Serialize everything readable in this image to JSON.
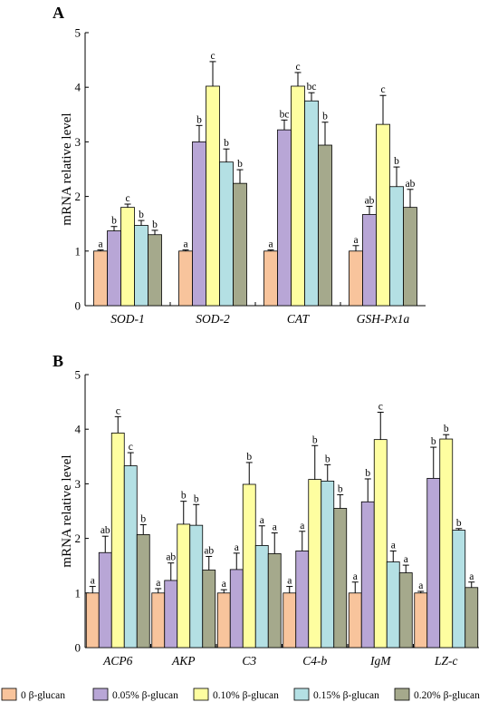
{
  "legend": [
    {
      "label": "0 β-glucan",
      "color": "#F8C49C"
    },
    {
      "label": "0.05% β-glucan",
      "color": "#B8A6D6"
    },
    {
      "label": "0.10% β-glucan",
      "color": "#FEFEA0"
    },
    {
      "label": "0.15% β-glucan",
      "color": "#B4E0E4"
    },
    {
      "label": "0.20% β-glucan",
      "color": "#A5A98C"
    }
  ],
  "chart_data": [
    {
      "panel": "A",
      "type": "bar",
      "ylabel": "mRNA relative level",
      "ylim": [
        0,
        5
      ],
      "yticks": [
        "0",
        "1",
        "2",
        "3",
        "4",
        "5"
      ],
      "categories": [
        "SOD-1",
        "SOD-2",
        "CAT",
        "GSH-Px1a"
      ],
      "series": [
        {
          "name": "0 β-glucan",
          "values": [
            1.0,
            1.0,
            1.0,
            1.0
          ],
          "errors": [
            0.02,
            0.02,
            0.02,
            0.1
          ],
          "letters": [
            "a",
            "a",
            "a",
            "a"
          ]
        },
        {
          "name": "0.05% β-glucan",
          "values": [
            1.37,
            3.0,
            3.22,
            1.67
          ],
          "errors": [
            0.08,
            0.3,
            0.18,
            0.15
          ],
          "letters": [
            "b",
            "b",
            "bc",
            "ab"
          ]
        },
        {
          "name": "0.10% β-glucan",
          "values": [
            1.8,
            4.02,
            4.02,
            3.32
          ],
          "errors": [
            0.06,
            0.45,
            0.25,
            0.53
          ],
          "letters": [
            "c",
            "c",
            "c",
            "c"
          ]
        },
        {
          "name": "0.15% β-glucan",
          "values": [
            1.47,
            2.63,
            3.75,
            2.18
          ],
          "errors": [
            0.09,
            0.24,
            0.15,
            0.36
          ],
          "letters": [
            "b",
            "b",
            "bc",
            "b"
          ]
        },
        {
          "name": "0.20% β-glucan",
          "values": [
            1.3,
            2.24,
            2.94,
            1.8
          ],
          "errors": [
            0.08,
            0.25,
            0.42,
            0.33
          ],
          "letters": [
            "b",
            "b",
            "b",
            "ab"
          ]
        }
      ]
    },
    {
      "panel": "B",
      "type": "bar",
      "ylabel": "mRNA relative level",
      "ylim": [
        0,
        5
      ],
      "yticks": [
        "0",
        "1",
        "2",
        "3",
        "4",
        "5"
      ],
      "categories": [
        "ACP6",
        "AKP",
        "C3",
        "C4-b",
        "IgM",
        "LZ-c"
      ],
      "series": [
        {
          "name": "0 β-glucan",
          "values": [
            1.0,
            1.0,
            1.0,
            1.0,
            1.0,
            1.0
          ],
          "errors": [
            0.12,
            0.08,
            0.06,
            0.12,
            0.2,
            0.03
          ],
          "letters": [
            "a",
            "a",
            "a",
            "a",
            "a",
            "a"
          ]
        },
        {
          "name": "0.05% β-glucan",
          "values": [
            1.74,
            1.23,
            1.43,
            1.77,
            2.67,
            3.1
          ],
          "errors": [
            0.3,
            0.32,
            0.3,
            0.36,
            0.42,
            0.57
          ],
          "letters": [
            "ab",
            "ab",
            "a",
            "a",
            "b",
            "b"
          ]
        },
        {
          "name": "0.10% β-glucan",
          "values": [
            3.93,
            2.26,
            2.99,
            3.08,
            3.81,
            3.82
          ],
          "errors": [
            0.3,
            0.42,
            0.4,
            0.62,
            0.5,
            0.08
          ],
          "letters": [
            "c",
            "b",
            "b",
            "b",
            "c",
            "b"
          ]
        },
        {
          "name": "0.15% β-glucan",
          "values": [
            3.33,
            2.24,
            1.87,
            3.05,
            1.57,
            2.15
          ],
          "errors": [
            0.24,
            0.38,
            0.36,
            0.3,
            0.2,
            0.03
          ],
          "letters": [
            "c",
            "b",
            "a",
            "b",
            "a",
            "b"
          ]
        },
        {
          "name": "0.20% β-glucan",
          "values": [
            2.07,
            1.42,
            1.72,
            2.55,
            1.37,
            1.1
          ],
          "errors": [
            0.18,
            0.25,
            0.38,
            0.25,
            0.14,
            0.1
          ],
          "letters": [
            "b",
            "ab",
            "a",
            "b",
            "a",
            "a"
          ]
        }
      ]
    }
  ]
}
